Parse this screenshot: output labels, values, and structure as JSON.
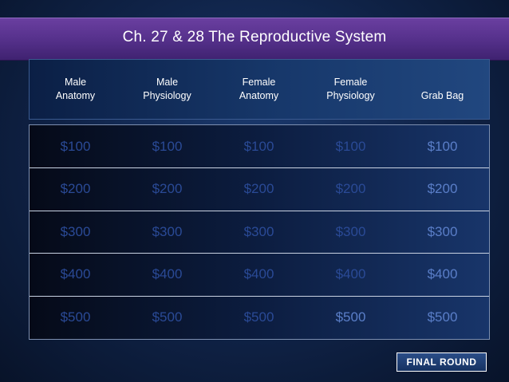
{
  "title": "Ch. 27 & 28 The Reproductive System",
  "categories": [
    {
      "line1": "Male",
      "line2": "Anatomy"
    },
    {
      "line1": "Male",
      "line2": "Physiology"
    },
    {
      "line1": "Female",
      "line2": "Anatomy"
    },
    {
      "line1": "Female",
      "line2": "Physiology"
    },
    {
      "line1": "Grab Bag",
      "line2": ""
    }
  ],
  "rows": [
    [
      "$100",
      "$100",
      "$100",
      "$100",
      "$100"
    ],
    [
      "$200",
      "$200",
      "$200",
      "$200",
      "$200"
    ],
    [
      "$300",
      "$300",
      "$300",
      "$300",
      "$300"
    ],
    [
      "$400",
      "$400",
      "$400",
      "$400",
      "$400"
    ],
    [
      "$500",
      "$500",
      "$500",
      "$500",
      "$500"
    ]
  ],
  "final_button": "FINAL ROUND",
  "colors": {
    "title_bar": "#56318c",
    "board_dark": "#050a18",
    "board_light": "#18356a",
    "value_text": "#2a4a96"
  }
}
